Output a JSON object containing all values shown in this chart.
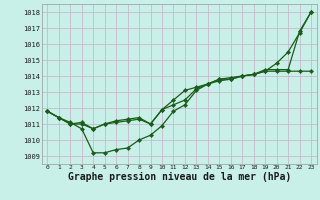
{
  "title": "Graphe pression niveau de la mer (hPa)",
  "bg_color": "#c8f0e8",
  "grid_color": "#c8b8cc",
  "line_color": "#1a5c1a",
  "xlim": [
    -0.5,
    23.5
  ],
  "ylim": [
    1008.5,
    1018.5
  ],
  "yticks": [
    1009,
    1010,
    1011,
    1012,
    1013,
    1014,
    1015,
    1016,
    1017,
    1018
  ],
  "xticks": [
    0,
    1,
    2,
    3,
    4,
    5,
    6,
    7,
    8,
    9,
    10,
    11,
    12,
    13,
    14,
    15,
    16,
    17,
    18,
    19,
    20,
    21,
    22,
    23
  ],
  "series": [
    [
      1011.8,
      1011.4,
      1011.1,
      1010.7,
      1009.2,
      1009.2,
      1009.4,
      1009.5,
      1010.0,
      1010.3,
      1010.9,
      1011.8,
      1012.2,
      1013.1,
      1013.5,
      1013.8,
      1013.8,
      1014.0,
      1014.1,
      1014.3,
      1014.8,
      1015.5,
      1016.7,
      1018.0
    ],
    [
      1011.8,
      1011.4,
      1011.0,
      1011.0,
      1010.7,
      1011.0,
      1011.1,
      1011.2,
      1011.3,
      1011.0,
      1011.9,
      1012.2,
      1012.5,
      1013.2,
      1013.5,
      1013.8,
      1013.9,
      1014.0,
      1014.1,
      1014.3,
      1014.3,
      1014.3,
      1014.3,
      1014.3
    ],
    [
      1011.8,
      1011.4,
      1011.0,
      1011.1,
      1010.7,
      1011.0,
      1011.2,
      1011.3,
      1011.4,
      1011.0,
      1011.9,
      1012.5,
      1013.1,
      1013.3,
      1013.5,
      1013.7,
      1013.8,
      1014.0,
      1014.1,
      1014.4,
      1014.4,
      1014.4,
      1016.8,
      1018.0
    ]
  ],
  "figsize": [
    3.2,
    2.0
  ],
  "dpi": 100,
  "xlabel_fontsize": 7,
  "ytick_fontsize": 5,
  "xtick_fontsize": 4.5,
  "linewidth": 0.9,
  "markersize": 2.2
}
